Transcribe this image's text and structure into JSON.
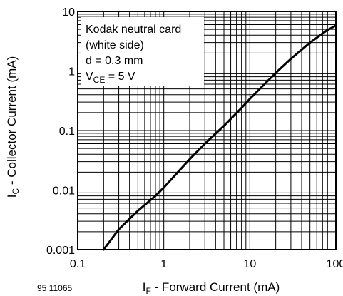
{
  "chart_data": {
    "type": "line",
    "title": "",
    "figure_id": "95 11065",
    "xlabel": {
      "symbol": "I",
      "sub": "F",
      "rest": " - Forward Current (mA)"
    },
    "ylabel": {
      "symbol": "I",
      "sub": "C",
      "rest": " - Collector Current (mA)"
    },
    "xscale": "log",
    "yscale": "log",
    "xlim": [
      0.1,
      100
    ],
    "ylim": [
      0.001,
      10
    ],
    "x_ticks": [
      0.1,
      1,
      10,
      100
    ],
    "x_tick_labels": [
      "0.1",
      "1",
      "10",
      "100"
    ],
    "y_ticks": [
      0.001,
      0.01,
      0.1,
      1,
      10
    ],
    "y_tick_labels": [
      "0.001",
      "0.01",
      "0.1",
      "1",
      "10"
    ],
    "grid": true,
    "legend": "none",
    "series": [
      {
        "x": [
          0.2,
          0.3,
          0.5,
          0.8,
          1,
          2,
          3,
          5,
          8,
          10,
          20,
          30,
          50,
          80,
          100
        ],
        "y": [
          0.001,
          0.0022,
          0.0045,
          0.008,
          0.011,
          0.033,
          0.06,
          0.12,
          0.24,
          0.34,
          0.93,
          1.6,
          3.0,
          4.9,
          5.8
        ]
      }
    ],
    "annotation": {
      "lines": [
        "Kodak neutral card",
        "(white side)",
        "d = 0.3 mm"
      ],
      "vce": {
        "symbol": "V",
        "sub": "CE",
        "rest": " = 5 V"
      }
    }
  }
}
